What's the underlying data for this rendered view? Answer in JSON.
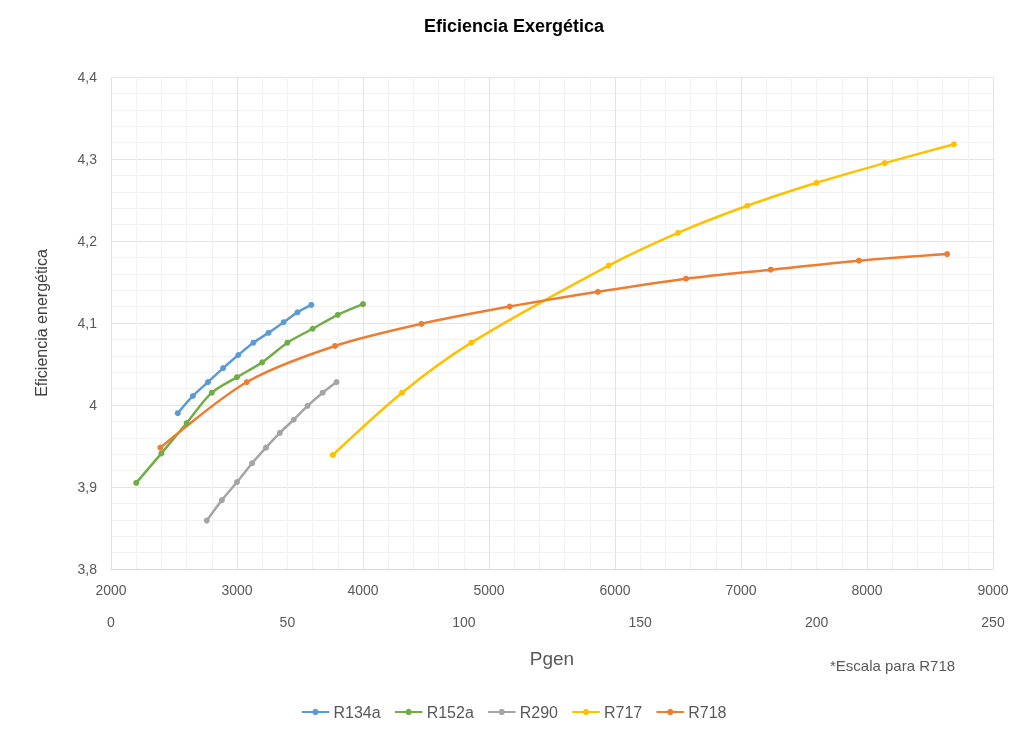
{
  "chart_data": {
    "type": "line",
    "title": "Eficiencia Exergética",
    "xlabel": "Pgen",
    "ylabel": "Eficiencia energética",
    "annotations": [
      "*Escala para R718"
    ],
    "xlim": [
      2000,
      9000
    ],
    "xticks": [
      2000,
      3000,
      4000,
      5000,
      6000,
      7000,
      8000,
      9000
    ],
    "x2lim": [
      0,
      250
    ],
    "x2ticks": [
      0,
      50,
      100,
      150,
      200,
      250
    ],
    "ylim": [
      3.8,
      4.4
    ],
    "yticks": [
      {
        "value": 3.8,
        "label": "3,8"
      },
      {
        "value": 3.9,
        "label": "3,9"
      },
      {
        "value": 4.0,
        "label": "4"
      },
      {
        "value": 4.1,
        "label": "4,1"
      },
      {
        "value": 4.2,
        "label": "4,2"
      },
      {
        "value": 4.3,
        "label": "4,3"
      },
      {
        "value": 4.4,
        "label": "4,4"
      }
    ],
    "grid": true,
    "legend": "bottom",
    "marker": "circle",
    "line_style": "solid",
    "series": [
      {
        "name": "R134a",
        "color": "#5b9bd5",
        "x": [
          2530,
          2650,
          2770,
          2890,
          3010,
          3130,
          3250,
          3370,
          3480,
          3590
        ],
        "values": [
          3.99,
          4.011,
          4.028,
          4.045,
          4.061,
          4.076,
          4.088,
          4.101,
          4.113,
          4.122
        ]
      },
      {
        "name": "R152a",
        "color": "#70ad47",
        "x": [
          2200,
          2400,
          2600,
          2800,
          3000,
          3200,
          3400,
          3600,
          3800,
          4000
        ],
        "values": [
          3.905,
          3.941,
          3.978,
          4.015,
          4.034,
          4.052,
          4.076,
          4.093,
          4.11,
          4.123
        ]
      },
      {
        "name": "R290",
        "color": "#a5a5a5",
        "x": [
          2760,
          2880,
          3000,
          3120,
          3230,
          3340,
          3450,
          3560,
          3680,
          3790
        ],
        "values": [
          3.859,
          3.884,
          3.906,
          3.929,
          3.948,
          3.966,
          3.982,
          3.999,
          4.015,
          4.028
        ]
      },
      {
        "name": "R717",
        "color": "#ffc000",
        "x": [
          3760,
          4310,
          4860,
          5950,
          6500,
          7050,
          7600,
          8140,
          8690
        ],
        "values": [
          3.939,
          4.015,
          4.076,
          4.17,
          4.21,
          4.243,
          4.271,
          4.295,
          4.318
        ]
      },
      {
        "name": "R718",
        "color": "#ed7d31",
        "axis": "x2",
        "x": [
          14,
          38.5,
          63.5,
          88,
          113,
          138,
          163,
          187,
          212,
          237
        ],
        "values": [
          3.948,
          4.028,
          4.072,
          4.099,
          4.12,
          4.138,
          4.154,
          4.165,
          4.176,
          4.184
        ]
      }
    ]
  }
}
